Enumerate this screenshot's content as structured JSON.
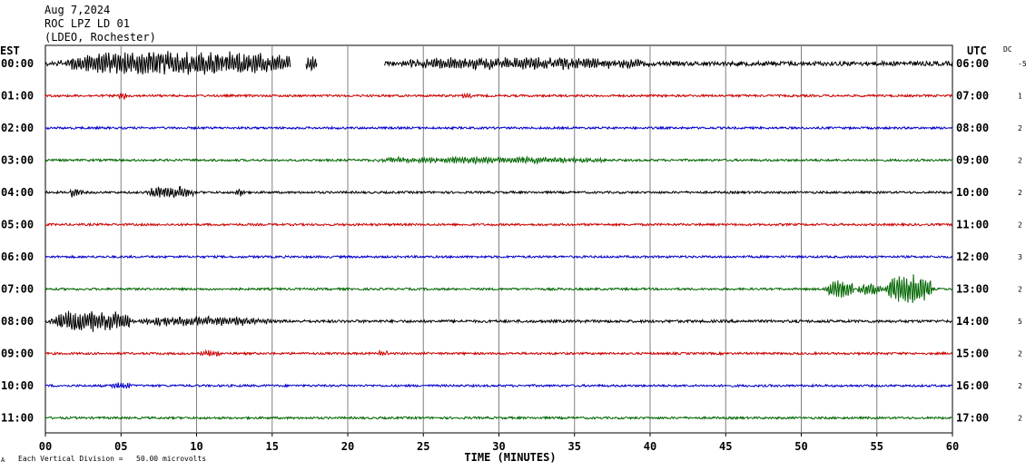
{
  "header": {
    "date": "Aug 7,2024",
    "station": "ROC LPZ LD 01",
    "network": "(LDEO, Rochester)"
  },
  "labels": {
    "left_zone": "EST",
    "right_zone": "UTC",
    "dc": "DC",
    "scale_note": "Each Vertical Division =   50.00 microvolts",
    "corner_mark": "A"
  },
  "colors": {
    "trace_cycle": [
      "#000000",
      "#cc0000",
      "#0000cc",
      "#006600"
    ],
    "grid": "#808080",
    "frame": "#000000"
  },
  "chart_data": {
    "type": "line",
    "title": "",
    "xlabel": "TIME (MINUTES)",
    "ylabel": "",
    "xlim": [
      0,
      60
    ],
    "x_ticks": [
      "00",
      "05",
      "10",
      "15",
      "20",
      "25",
      "30",
      "35",
      "40",
      "45",
      "50",
      "55",
      "60"
    ],
    "grid": true,
    "rows": [
      {
        "est": "00:00",
        "utc": "06:00",
        "dc": "-5",
        "color": "#000000",
        "base_noise": 4,
        "gaps": [
          [
            16.2,
            17.2
          ],
          [
            18.0,
            22.4
          ]
        ],
        "bursts": [
          {
            "start": 0.2,
            "end": 16.2,
            "amp": 14
          },
          {
            "start": 17.2,
            "end": 18.0,
            "amp": 8
          },
          {
            "start": 22.4,
            "end": 40,
            "amp": 6
          }
        ]
      },
      {
        "est": "01:00",
        "utc": "07:00",
        "dc": "1",
        "color": "#cc0000",
        "base_noise": 2,
        "bursts": [
          {
            "start": 4.8,
            "end": 5.4,
            "amp": 4
          },
          {
            "start": 27.5,
            "end": 28.2,
            "amp": 4
          }
        ]
      },
      {
        "est": "02:00",
        "utc": "08:00",
        "dc": "2",
        "color": "#0000cc",
        "base_noise": 2,
        "bursts": []
      },
      {
        "est": "03:00",
        "utc": "09:00",
        "dc": "2",
        "color": "#006600",
        "base_noise": 2,
        "bursts": [
          {
            "start": 20.5,
            "end": 37,
            "amp": 3.5
          }
        ]
      },
      {
        "est": "04:00",
        "utc": "10:00",
        "dc": "2",
        "color": "#000000",
        "base_noise": 2,
        "bursts": [
          {
            "start": 1.5,
            "end": 2.5,
            "amp": 5
          },
          {
            "start": 6.5,
            "end": 9.8,
            "amp": 7
          },
          {
            "start": 12.5,
            "end": 13.2,
            "amp": 4
          }
        ]
      },
      {
        "est": "05:00",
        "utc": "11:00",
        "dc": "2",
        "color": "#cc0000",
        "base_noise": 2,
        "bursts": []
      },
      {
        "est": "06:00",
        "utc": "12:00",
        "dc": "3",
        "color": "#0000cc",
        "base_noise": 2,
        "bursts": []
      },
      {
        "est": "07:00",
        "utc": "13:00",
        "dc": "2",
        "color": "#006600",
        "base_noise": 2,
        "bursts": [
          {
            "start": 51.5,
            "end": 53.5,
            "amp": 10
          },
          {
            "start": 53.5,
            "end": 55.5,
            "amp": 6
          },
          {
            "start": 55.5,
            "end": 58.6,
            "amp": 18
          }
        ]
      },
      {
        "est": "08:00",
        "utc": "14:00",
        "dc": "5",
        "color": "#000000",
        "base_noise": 2.5,
        "bursts": [
          {
            "start": 0.1,
            "end": 5.6,
            "amp": 12
          },
          {
            "start": 5.6,
            "end": 15,
            "amp": 5
          }
        ]
      },
      {
        "est": "09:00",
        "utc": "15:00",
        "dc": "2",
        "color": "#cc0000",
        "base_noise": 2,
        "bursts": [
          {
            "start": 10,
            "end": 11.5,
            "amp": 4
          },
          {
            "start": 22,
            "end": 22.6,
            "amp": 3
          }
        ]
      },
      {
        "est": "10:00",
        "utc": "16:00",
        "dc": "2",
        "color": "#0000cc",
        "base_noise": 2,
        "bursts": [
          {
            "start": 4.3,
            "end": 5.6,
            "amp": 4
          }
        ]
      },
      {
        "est": "11:00",
        "utc": "17:00",
        "dc": "2",
        "color": "#006600",
        "base_noise": 2,
        "bursts": []
      }
    ]
  }
}
